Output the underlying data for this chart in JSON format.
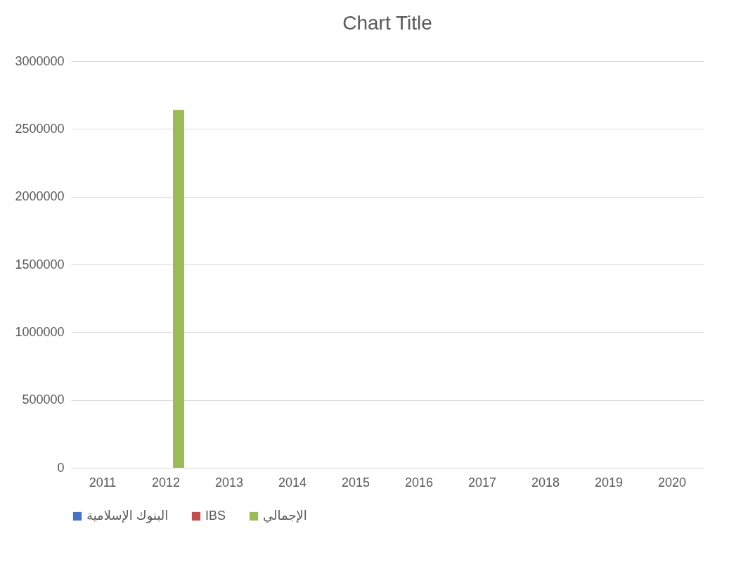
{
  "chart_data": {
    "type": "bar",
    "title": "Chart Title",
    "categories": [
      "2011",
      "2012",
      "2013",
      "2014",
      "2015",
      "2016",
      "2017",
      "2018",
      "2019",
      "2020"
    ],
    "series": [
      {
        "name": "البنوك الإسلامية",
        "color": "#4472c4",
        "values": [
          0,
          0,
          null,
          null,
          null,
          null,
          null,
          null,
          null,
          null
        ]
      },
      {
        "name": "IBS",
        "color": "#c0504d",
        "values": [
          0,
          0,
          null,
          null,
          null,
          null,
          null,
          null,
          null,
          null
        ]
      },
      {
        "name": "الإجمالي",
        "color": "#9bbb59",
        "values": [
          0,
          2640000,
          null,
          null,
          null,
          null,
          null,
          null,
          null,
          null
        ]
      }
    ],
    "ylim": [
      0,
      3000000
    ],
    "yticks": [
      0,
      500000,
      1000000,
      1500000,
      2000000,
      2500000,
      3000000
    ],
    "grid": "y",
    "legend": "bottom"
  }
}
